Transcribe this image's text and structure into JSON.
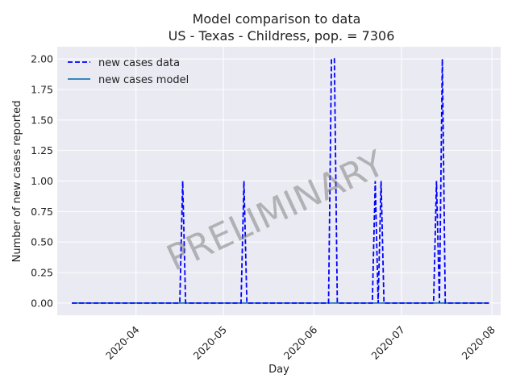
{
  "chart_data": {
    "type": "line",
    "title": "Model comparison to data",
    "subtitle": "US - Texas - Childress, pop. = 7306",
    "xlabel": "Day",
    "ylabel": "Number of new cases reported",
    "xlim": [
      "2020-03-05",
      "2020-08-04"
    ],
    "ylim": [
      -0.1,
      2.1
    ],
    "x_ticks": [
      "2020-04",
      "2020-05",
      "2020-06",
      "2020-07",
      "2020-08"
    ],
    "y_ticks": [
      "0.00",
      "0.25",
      "0.50",
      "0.75",
      "1.00",
      "1.25",
      "1.50",
      "1.75",
      "2.00"
    ],
    "grid": true,
    "legend_position": "top-left",
    "watermark": "PRELIMINARY",
    "series": [
      {
        "name": "new cases data",
        "style": "dashed",
        "color": "#0000ff",
        "points": [
          [
            "2020-03-10",
            0
          ],
          [
            "2020-04-16",
            0
          ],
          [
            "2020-04-17",
            1
          ],
          [
            "2020-04-18",
            0
          ],
          [
            "2020-05-07",
            0
          ],
          [
            "2020-05-08",
            1
          ],
          [
            "2020-05-09",
            0
          ],
          [
            "2020-06-06",
            0
          ],
          [
            "2020-06-07",
            2
          ],
          [
            "2020-06-08",
            2
          ],
          [
            "2020-06-09",
            0
          ],
          [
            "2020-06-21",
            0
          ],
          [
            "2020-06-22",
            1
          ],
          [
            "2020-06-23",
            0
          ],
          [
            "2020-06-24",
            1
          ],
          [
            "2020-06-25",
            0
          ],
          [
            "2020-07-12",
            0
          ],
          [
            "2020-07-13",
            1
          ],
          [
            "2020-07-14",
            0
          ],
          [
            "2020-07-15",
            2
          ],
          [
            "2020-07-16",
            0
          ],
          [
            "2020-07-31",
            0
          ]
        ]
      },
      {
        "name": "new cases model",
        "style": "solid",
        "color": "#1f77b4",
        "points": [
          [
            "2020-03-10",
            0
          ],
          [
            "2020-07-31",
            0
          ]
        ]
      }
    ]
  }
}
